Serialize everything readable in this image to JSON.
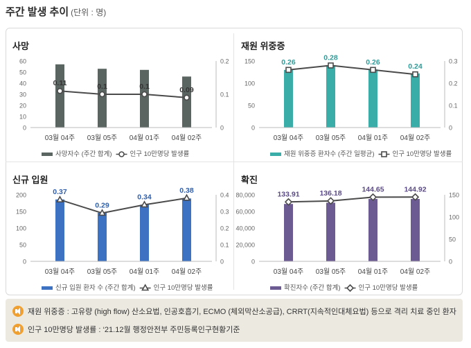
{
  "page": {
    "title": "주간 발생 추이",
    "unit": "(단위 : 명)"
  },
  "notes": [
    "재원 위중증 : 고유량 (high flow) 산소요법, 인공호흡기, ECMO (체외막산소공급), CRRT(지속적인대체요법) 등으로 격리 치료 중인 환자",
    "인구 10만명당 발생률 : ‘21.12월 행정안전부 주민등록인구현황기준"
  ],
  "colors": {
    "deaths": "#5a6461",
    "critical": "#3aada9",
    "admissions": "#3d72c2",
    "confirmed": "#6c5a93",
    "line": "#4a4a4a"
  },
  "chart_data": [
    {
      "id": "deaths",
      "title": "사망",
      "type": "bar+line",
      "categories": [
        "03월 04주",
        "03월 05주",
        "04월 01주",
        "04월 02주"
      ],
      "series": [
        {
          "name": "사망자수 (주간 합계)",
          "kind": "bar",
          "axis": "left",
          "values": [
            57,
            53,
            52,
            46
          ]
        },
        {
          "name": "인구 10만명당 발생률",
          "kind": "line",
          "axis": "right",
          "marker": "circle",
          "values": [
            0.11,
            0.1,
            0.1,
            0.09
          ],
          "labels": [
            "0.11",
            "0.1",
            "0.1",
            "0.09"
          ]
        }
      ],
      "y_left": {
        "min": 0,
        "max": 60,
        "ticks": [
          "0",
          "10",
          "20",
          "30",
          "40",
          "50",
          "60"
        ]
      },
      "y_right": {
        "min": 0,
        "max": 0.2,
        "ticks": [
          "0",
          "0.1",
          "0.2"
        ]
      },
      "label_color": "#333333",
      "legend": "bottom"
    },
    {
      "id": "critical",
      "title": "재원 위중증",
      "type": "bar+line",
      "categories": [
        "03월 04주",
        "03월 05주",
        "04월 01주",
        "04월 02주"
      ],
      "series": [
        {
          "name": "재원 위중증 환자수 (주간 일평균)",
          "kind": "bar",
          "axis": "left",
          "values": [
            130,
            139,
            131,
            122
          ]
        },
        {
          "name": "인구 10만명당 발생률",
          "kind": "line",
          "axis": "right",
          "marker": "square",
          "values": [
            0.26,
            0.28,
            0.26,
            0.24
          ],
          "labels": [
            "0.26",
            "0.28",
            "0.26",
            "0.24"
          ]
        }
      ],
      "y_left": {
        "min": 0,
        "max": 150,
        "ticks": [
          "0",
          "50",
          "100",
          "150"
        ]
      },
      "y_right": {
        "min": 0,
        "max": 0.3,
        "ticks": [
          "0",
          "0.1",
          "0.2",
          "0.3"
        ]
      },
      "label_color": "#2f9a97",
      "legend": "bottom"
    },
    {
      "id": "admissions",
      "title": "신규 입원",
      "type": "bar+line",
      "categories": [
        "03월 04주",
        "03월 05주",
        "04월 01주",
        "04월 02주"
      ],
      "series": [
        {
          "name": "신규 입원 환자 수 (주간 합계)",
          "kind": "bar",
          "axis": "left",
          "values": [
            186,
            146,
            170,
            189
          ]
        },
        {
          "name": "인구 10만명당 발생률",
          "kind": "line",
          "axis": "right",
          "marker": "triangle",
          "values": [
            0.37,
            0.29,
            0.34,
            0.38
          ],
          "labels": [
            "0.37",
            "0.29",
            "0.34",
            "0.38"
          ]
        }
      ],
      "y_left": {
        "min": 0,
        "max": 200,
        "ticks": [
          "0",
          "50",
          "100",
          "150",
          "200"
        ]
      },
      "y_right": {
        "min": 0,
        "max": 0.4,
        "ticks": [
          "0",
          "0.1",
          "0.2",
          "0.3",
          "0.4"
        ]
      },
      "label_color": "#2e5fae",
      "legend": "bottom"
    },
    {
      "id": "confirmed",
      "title": "확진",
      "type": "bar+line",
      "categories": [
        "03월 04주",
        "03월 05주",
        "04월 01주",
        "04월 02주"
      ],
      "series": [
        {
          "name": "확진자수 (주간 합계)",
          "kind": "bar",
          "axis": "left",
          "values": [
            69000,
            70500,
            75000,
            75000
          ]
        },
        {
          "name": "인구 10만명당 발생률",
          "kind": "line",
          "axis": "right",
          "marker": "diamond",
          "values": [
            133.91,
            136.18,
            144.65,
            144.92
          ],
          "labels": [
            "133.91",
            "136.18",
            "144.65",
            "144.92"
          ]
        }
      ],
      "y_left": {
        "min": 0,
        "max": 80000,
        "ticks": [
          "0",
          "20,000",
          "40,000",
          "60,000",
          "80,000"
        ]
      },
      "y_right": {
        "min": 0,
        "max": 150,
        "ticks": [
          "0",
          "50",
          "100",
          "150"
        ]
      },
      "label_color": "#5a4a85",
      "legend": "bottom"
    }
  ]
}
